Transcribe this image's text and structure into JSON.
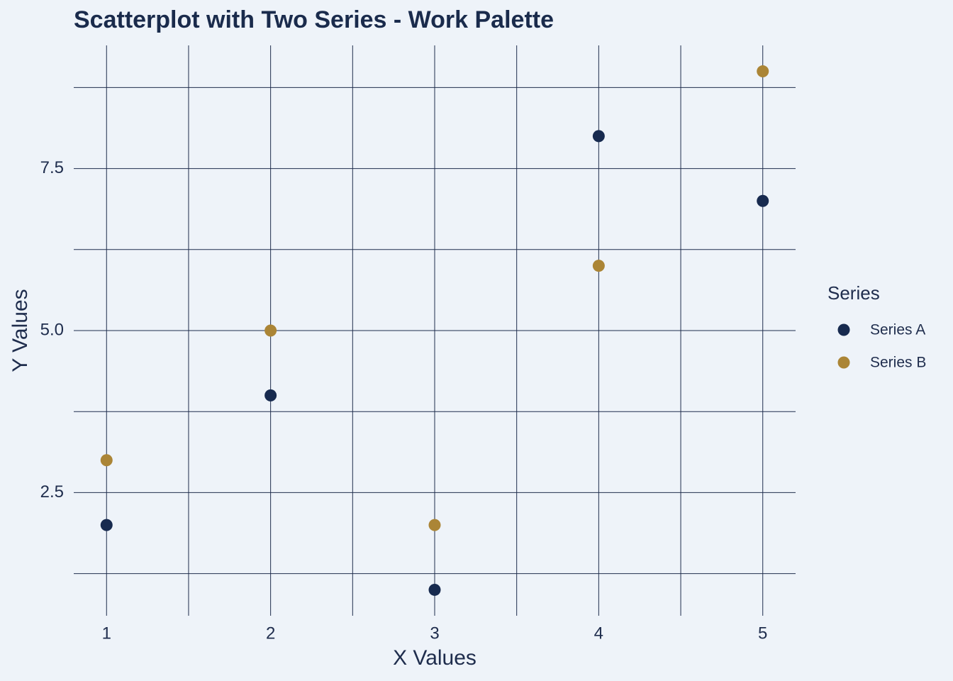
{
  "chart_data": {
    "type": "scatter",
    "title": "Scatterplot with Two Series - Work Palette",
    "x_label": "X Values",
    "y_label": "Y Values",
    "legend_title": "Series",
    "legend": "right",
    "series": [
      {
        "name": "Series A",
        "color": "#172a4f",
        "x": [
          1,
          2,
          3,
          4,
          5
        ],
        "values": [
          2,
          4,
          1,
          8,
          7
        ]
      },
      {
        "name": "Series B",
        "color": "#ab8536",
        "x": [
          1,
          2,
          3,
          4,
          5
        ],
        "values": [
          3,
          5,
          2,
          6,
          9
        ]
      }
    ],
    "xlim": [
      0.8,
      5.2
    ],
    "xticks": [
      1,
      2,
      3,
      4,
      5
    ],
    "xminor": [
      1.5,
      2.5,
      3.5,
      4.5
    ],
    "ylim": [
      0.6,
      9.4
    ],
    "yticks": [
      2.5,
      {
        "value": 5,
        "label": "5.0"
      },
      7.5
    ],
    "yminor": [
      1.25,
      3.75,
      6.25,
      8.75
    ],
    "grid": true,
    "grid_color": "#1f2d4d"
  }
}
